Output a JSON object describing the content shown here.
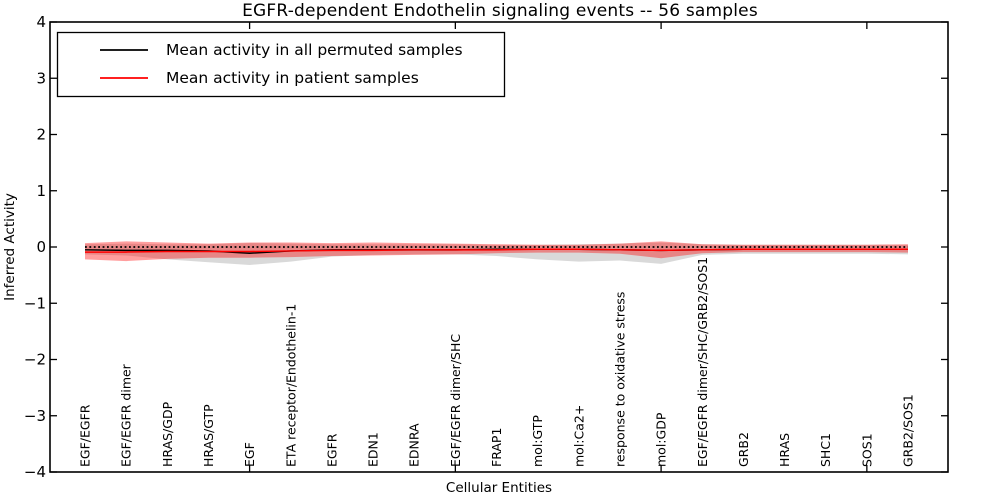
{
  "page": {
    "background": "#ffffff"
  },
  "chart_data": {
    "type": "line",
    "title": "EGFR-dependent Endothelin signaling events -- 56 samples",
    "xlabel": "Cellular Entities",
    "ylabel": "Inferred Activity",
    "ylim": [
      -4,
      4
    ],
    "yticklabels": [
      "4",
      "3",
      "2",
      "1",
      "0",
      "−1",
      "−2",
      "−3",
      "−4"
    ],
    "x_major_tick_indices": [
      4,
      9,
      14,
      19
    ],
    "legend_position": "upper left",
    "grid": false,
    "categories": [
      "EGF/EGFR",
      "EGF/EGFR dimer",
      "HRAS/GDP",
      "HRAS/GTP",
      "EGF",
      "ETA receptor/Endothelin-1",
      "EGFR",
      "EDN1",
      "EDNRA",
      "EGF/EGFR dimer/SHC",
      "FRAP1",
      "mol:GTP",
      "mol:Ca2+",
      "response to oxidative stress",
      "mol:GDP",
      "EGF/EGFR dimer/SHC/GRB2/SOS1",
      "GRB2",
      "HRAS",
      "SHC1",
      "SOS1",
      "GRB2/SOS1"
    ],
    "series": [
      {
        "name": "Mean activity in all permuted samples",
        "color": "#000000",
        "band_color": "#000000",
        "band_opacity": 0.15,
        "values": [
          -0.05,
          -0.06,
          -0.06,
          -0.07,
          -0.11,
          -0.07,
          -0.05,
          -0.05,
          -0.05,
          -0.05,
          -0.04,
          -0.04,
          -0.04,
          -0.05,
          -0.06,
          -0.05,
          -0.04,
          -0.04,
          -0.04,
          -0.04,
          -0.04
        ],
        "band_upper": [
          0.05,
          0.06,
          0.05,
          0.05,
          0.07,
          0.06,
          0.05,
          0.05,
          0.05,
          0.05,
          0.04,
          0.04,
          0.05,
          0.06,
          0.08,
          0.05,
          0.04,
          0.04,
          0.04,
          0.04,
          0.04
        ],
        "band_lower": [
          -0.13,
          -0.15,
          -0.22,
          -0.27,
          -0.32,
          -0.26,
          -0.17,
          -0.14,
          -0.13,
          -0.13,
          -0.16,
          -0.22,
          -0.26,
          -0.24,
          -0.3,
          -0.14,
          -0.12,
          -0.12,
          -0.12,
          -0.12,
          -0.13
        ]
      },
      {
        "name": "Mean activity in patient samples",
        "color": "#ff0000",
        "band_color": "#ff0000",
        "band_opacity": 0.38,
        "values": [
          -0.09,
          -0.09,
          -0.08,
          -0.08,
          -0.08,
          -0.07,
          -0.06,
          -0.06,
          -0.05,
          -0.05,
          -0.05,
          -0.04,
          -0.04,
          -0.05,
          -0.06,
          -0.05,
          -0.04,
          -0.04,
          -0.04,
          -0.04,
          -0.04
        ],
        "band_upper": [
          0.07,
          0.1,
          0.08,
          0.06,
          0.08,
          0.08,
          0.07,
          0.08,
          0.07,
          0.06,
          0.05,
          0.04,
          0.04,
          0.06,
          0.1,
          0.05,
          0.04,
          0.04,
          0.04,
          0.04,
          0.05
        ],
        "band_lower": [
          -0.22,
          -0.25,
          -0.21,
          -0.19,
          -0.19,
          -0.18,
          -0.16,
          -0.15,
          -0.14,
          -0.13,
          -0.11,
          -0.1,
          -0.1,
          -0.12,
          -0.2,
          -0.11,
          -0.09,
          -0.09,
          -0.09,
          -0.09,
          -0.1
        ]
      }
    ],
    "zero_line": {
      "y": 0,
      "color": "#000000",
      "style": "dotted"
    }
  }
}
